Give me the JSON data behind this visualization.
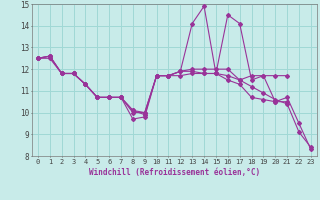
{
  "xlabel": "Windchill (Refroidissement éolien,°C)",
  "background_color": "#c8ebe9",
  "grid_color": "#a0d8d5",
  "line_color": "#993399",
  "spine_color": "#7a7a7a",
  "xlim": [
    -0.5,
    23.5
  ],
  "ylim": [
    8,
    15
  ],
  "xticks": [
    0,
    1,
    2,
    3,
    4,
    5,
    6,
    7,
    8,
    9,
    10,
    11,
    12,
    13,
    14,
    15,
    16,
    17,
    18,
    19,
    20,
    21,
    22,
    23
  ],
  "yticks": [
    8,
    9,
    10,
    11,
    12,
    13,
    14,
    15
  ],
  "series": [
    {
      "x": [
        0,
        1,
        2,
        3,
        4,
        5,
        6,
        7,
        8,
        9,
        10,
        11,
        12,
        13,
        14,
        15,
        16,
        17,
        18,
        19,
        20,
        21,
        22,
        23
      ],
      "y": [
        12.5,
        12.6,
        11.8,
        11.8,
        11.3,
        10.7,
        10.7,
        10.7,
        10.1,
        10.0,
        11.7,
        11.7,
        11.9,
        14.1,
        14.9,
        11.8,
        14.5,
        14.1,
        11.5,
        11.7,
        10.5,
        10.7,
        9.5,
        8.3
      ]
    },
    {
      "x": [
        0,
        1,
        2,
        3,
        4,
        5,
        6,
        7,
        8,
        9,
        10,
        11,
        12,
        13,
        14,
        15,
        16,
        17,
        18,
        19,
        20,
        21
      ],
      "y": [
        12.5,
        12.6,
        11.8,
        11.8,
        11.3,
        10.7,
        10.7,
        10.7,
        10.0,
        10.0,
        11.7,
        11.7,
        11.9,
        12.0,
        12.0,
        12.0,
        12.0,
        11.5,
        11.7,
        11.7,
        11.7,
        11.7
      ]
    },
    {
      "x": [
        0,
        1,
        2,
        3,
        4,
        5,
        6,
        7,
        8,
        9,
        10,
        11,
        12,
        13,
        14,
        15,
        16,
        17,
        18,
        19,
        20,
        21
      ],
      "y": [
        12.5,
        12.6,
        11.8,
        11.8,
        11.3,
        10.7,
        10.7,
        10.7,
        9.7,
        9.8,
        11.7,
        11.7,
        11.9,
        11.9,
        11.8,
        11.8,
        11.5,
        11.3,
        10.7,
        10.6,
        10.5,
        10.5
      ]
    },
    {
      "x": [
        0,
        1,
        2,
        3,
        4,
        5,
        6,
        7,
        8,
        9,
        10,
        11,
        12,
        13,
        14,
        15,
        16,
        17,
        18,
        19,
        20,
        21,
        22,
        23
      ],
      "y": [
        12.5,
        12.5,
        11.8,
        11.8,
        11.3,
        10.7,
        10.7,
        10.7,
        10.1,
        9.9,
        11.7,
        11.7,
        11.7,
        11.8,
        11.8,
        11.8,
        11.7,
        11.5,
        11.2,
        10.9,
        10.6,
        10.4,
        9.1,
        8.4
      ]
    }
  ]
}
